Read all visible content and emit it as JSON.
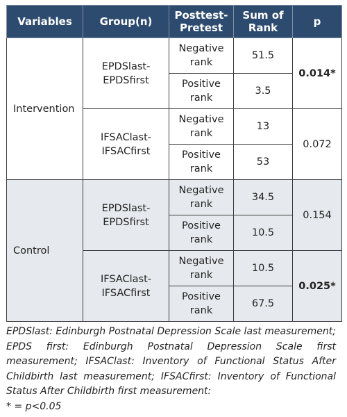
{
  "table": {
    "columns": [
      "Variables",
      "Group(n)",
      "Posttest-Pretest",
      "Sum of Rank",
      "p"
    ],
    "groups": [
      {
        "variable": "Intervention",
        "shaded": false,
        "subgroups": [
          {
            "group": "EPDSlast-EPDSfirst",
            "p": "0.014*",
            "bold": true,
            "rows": [
              {
                "change": "Negative rank",
                "sum": 51.5
              },
              {
                "change": "Positive rank",
                "sum": 3.5
              }
            ]
          },
          {
            "group": "IFSAClast-IFSACfirst",
            "p": "0.072",
            "bold": false,
            "rows": [
              {
                "change": "Negative rank",
                "sum": 13
              },
              {
                "change": "Positive rank",
                "sum": 53
              }
            ]
          }
        ]
      },
      {
        "variable": "Control",
        "shaded": true,
        "subgroups": [
          {
            "group": "EPDSlast-EPDSfirst",
            "p": "0.154",
            "bold": false,
            "rows": [
              {
                "change": "Negative rank",
                "sum": 34.5
              },
              {
                "change": "Positive rank",
                "sum": 10.5
              }
            ]
          },
          {
            "group": "IFSAClast-IFSACfirst",
            "p": "0.025*",
            "bold": true,
            "rows": [
              {
                "change": "Negative rank",
                "sum": 10.5
              },
              {
                "change": "Positive rank",
                "sum": 67.5
              }
            ]
          }
        ]
      }
    ]
  },
  "footnote": [
    "EPDSlast: Edinburgh Postnatal Depression Scale last measurement; EPDS first: Edinburgh Postnatal Depression Scale first measurement; IFSAClast: Inventory of Functional Status After Childbirth last measurement; IFSACfirst: Inventory of Functional Status After Childbirth first measurement:",
    "* = p<0.05"
  ]
}
